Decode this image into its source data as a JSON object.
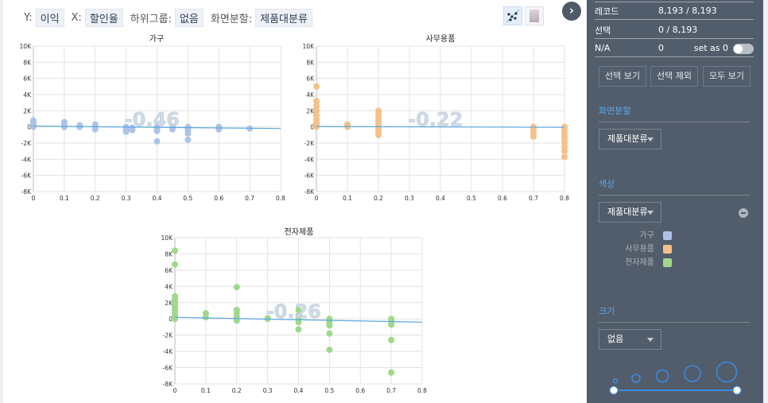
{
  "toolbar": {
    "y_label": "Y:",
    "y_value": "이익",
    "x_label": "X:",
    "x_value": "할인율",
    "subgroup_label": "하위그룹:",
    "subgroup_value": "없음",
    "split_label": "화면분할:",
    "split_value": "제품대분류",
    "view_buttons": [
      "scatter-view-icon",
      "gradient-view-icon"
    ],
    "collapse_icon": "chevron-right-icon"
  },
  "sidebar": {
    "records_label": "레코드",
    "records_value": "8,193 / 8,193",
    "selection_label": "선택",
    "selection_value": "0 / 8,193",
    "na_label": "N/A",
    "na_value": "0",
    "na_set_label": "set as 0",
    "na_toggle": false,
    "buttons": [
      "선택 보기",
      "선택 제외",
      "모두 보기"
    ],
    "split_section": {
      "title": "화면분할",
      "dropdown": "제품대분류"
    },
    "color_section": {
      "title": "색상",
      "dropdown": "제품대분류",
      "legend": [
        {
          "label": "가구",
          "color": "#aec3e8"
        },
        {
          "label": "사무용품",
          "color": "#f5c08a"
        },
        {
          "label": "전자제품",
          "color": "#9fd88a"
        }
      ]
    },
    "size_section": {
      "title": "크기",
      "dropdown": "없음"
    }
  },
  "chart_data": [
    {
      "type": "scatter",
      "title": "가구",
      "xlabel": "할인율",
      "ylabel": "이익",
      "xlim": [
        0,
        0.8
      ],
      "ylim": [
        -8000,
        10000
      ],
      "x_ticks": [
        "0",
        "0.1",
        "0.2",
        "0.3",
        "0.4",
        "0.5",
        "0.6",
        "0.7",
        "0.8"
      ],
      "y_ticks": [
        "10K",
        "8K",
        "6K",
        "4K",
        "2K",
        "0",
        "-2K",
        "-4K",
        "-6K",
        "-8K"
      ],
      "color": "#aec3e8",
      "correlation": "-0.46",
      "trend": {
        "x0": 0,
        "y0": 100,
        "x1": 0.8,
        "y1": -200
      },
      "points": [
        [
          0,
          0
        ],
        [
          0,
          300
        ],
        [
          0,
          600
        ],
        [
          0,
          800
        ],
        [
          0.1,
          0
        ],
        [
          0.1,
          300
        ],
        [
          0.1,
          600
        ],
        [
          0.15,
          0
        ],
        [
          0.15,
          200
        ],
        [
          0.2,
          -300
        ],
        [
          0.2,
          0
        ],
        [
          0.2,
          300
        ],
        [
          0.3,
          -600
        ],
        [
          0.3,
          -300
        ],
        [
          0.3,
          0
        ],
        [
          0.32,
          -400
        ],
        [
          0.32,
          -100
        ],
        [
          0.4,
          -500
        ],
        [
          0.4,
          -200
        ],
        [
          0.4,
          0
        ],
        [
          0.4,
          -1800
        ],
        [
          0.45,
          -300
        ],
        [
          0.45,
          0
        ],
        [
          0.5,
          -800
        ],
        [
          0.5,
          -500
        ],
        [
          0.5,
          -200
        ],
        [
          0.5,
          0
        ],
        [
          0.5,
          -1600
        ],
        [
          0.6,
          -300
        ],
        [
          0.6,
          0
        ],
        [
          0.7,
          -200
        ]
      ]
    },
    {
      "type": "scatter",
      "title": "사무용품",
      "xlabel": "할인율",
      "ylabel": "이익",
      "xlim": [
        0,
        0.8
      ],
      "ylim": [
        -8000,
        10000
      ],
      "x_ticks": [
        "0",
        "0.1",
        "0.2",
        "0.3",
        "0.4",
        "0.5",
        "0.6",
        "0.7",
        "0.8"
      ],
      "y_ticks": [
        "10K",
        "8K",
        "6K",
        "4K",
        "2K",
        "0",
        "-2K",
        "-4K",
        "-6K",
        "-8K"
      ],
      "color": "#f5c08a",
      "correlation": "-0.22",
      "trend": {
        "x0": 0,
        "y0": 50,
        "x1": 0.8,
        "y1": -50
      },
      "points": [
        [
          0,
          5000
        ],
        [
          0,
          3200
        ],
        [
          0,
          2600
        ],
        [
          0,
          2000
        ],
        [
          0,
          1400
        ],
        [
          0,
          900
        ],
        [
          0,
          500
        ],
        [
          0,
          200
        ],
        [
          0,
          0
        ],
        [
          0.1,
          0
        ],
        [
          0.1,
          300
        ],
        [
          0.2,
          2000
        ],
        [
          0.2,
          1600
        ],
        [
          0.2,
          1200
        ],
        [
          0.2,
          800
        ],
        [
          0.2,
          400
        ],
        [
          0.2,
          0
        ],
        [
          0.2,
          -400
        ],
        [
          0.2,
          -800
        ],
        [
          0.2,
          -1000
        ],
        [
          0.7,
          0
        ],
        [
          0.7,
          -400
        ],
        [
          0.7,
          -800
        ],
        [
          0.7,
          -1200
        ],
        [
          0.8,
          0
        ],
        [
          0.8,
          -400
        ],
        [
          0.8,
          -800
        ],
        [
          0.8,
          -1200
        ],
        [
          0.8,
          -1600
        ],
        [
          0.8,
          -2000
        ],
        [
          0.8,
          -2500
        ],
        [
          0.8,
          -3000
        ],
        [
          0.8,
          -3700
        ]
      ]
    },
    {
      "type": "scatter",
      "title": "전자제품",
      "xlabel": "할인율",
      "ylabel": "이익",
      "xlim": [
        0,
        0.8
      ],
      "ylim": [
        -8000,
        10000
      ],
      "x_ticks": [
        "0",
        "0.1",
        "0.2",
        "0.3",
        "0.4",
        "0.5",
        "0.6",
        "0.7",
        "0.8"
      ],
      "y_ticks": [
        "10K",
        "8K",
        "6K",
        "4K",
        "2K",
        "0",
        "-2K",
        "-4K",
        "-6K",
        "-8K"
      ],
      "color": "#9fd88a",
      "correlation": "-0.26",
      "trend": {
        "x0": 0,
        "y0": 200,
        "x1": 0.8,
        "y1": -400
      },
      "points": [
        [
          0,
          8400
        ],
        [
          0,
          6700
        ],
        [
          0,
          2800
        ],
        [
          0,
          2400
        ],
        [
          0,
          2000
        ],
        [
          0,
          1600
        ],
        [
          0,
          1200
        ],
        [
          0,
          800
        ],
        [
          0,
          400
        ],
        [
          0,
          0
        ],
        [
          0.1,
          700
        ],
        [
          0.1,
          200
        ],
        [
          0.2,
          3900
        ],
        [
          0.2,
          1100
        ],
        [
          0.2,
          700
        ],
        [
          0.2,
          300
        ],
        [
          0.2,
          0
        ],
        [
          0.2,
          -200
        ],
        [
          0.3,
          0
        ],
        [
          0.3,
          100
        ],
        [
          0.4,
          1100
        ],
        [
          0.4,
          400
        ],
        [
          0.4,
          0
        ],
        [
          0.4,
          -400
        ],
        [
          0.4,
          -1300
        ],
        [
          0.5,
          0
        ],
        [
          0.5,
          -400
        ],
        [
          0.5,
          -800
        ],
        [
          0.5,
          -1800
        ],
        [
          0.5,
          -3800
        ],
        [
          0.7,
          0
        ],
        [
          0.7,
          -300
        ],
        [
          0.7,
          -700
        ],
        [
          0.7,
          -2600
        ],
        [
          0.7,
          -6600
        ]
      ]
    }
  ]
}
